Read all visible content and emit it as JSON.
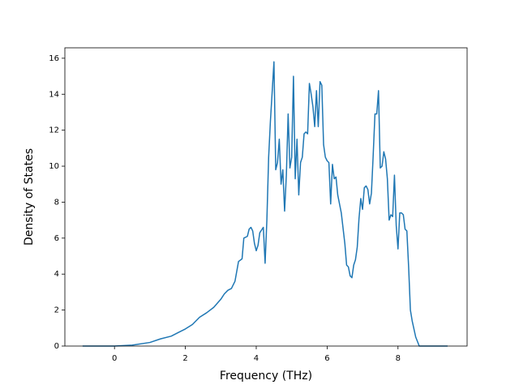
{
  "chart_data": {
    "type": "line",
    "xlabel": "Frequency (THz)",
    "ylabel": "Density of States",
    "color": "#1f77b4",
    "x": [
      -0.9,
      0,
      0.5,
      1.0,
      1.3,
      1.6,
      1.8,
      2.0,
      2.2,
      2.4,
      2.6,
      2.8,
      3.0,
      3.1,
      3.2,
      3.3,
      3.4,
      3.5,
      3.6,
      3.65,
      3.75,
      3.8,
      3.85,
      3.9,
      3.95,
      4.0,
      4.05,
      4.1,
      4.2,
      4.25,
      4.3,
      4.35,
      4.4,
      4.5,
      4.55,
      4.6,
      4.65,
      4.7,
      4.75,
      4.8,
      4.85,
      4.9,
      4.95,
      5.0,
      5.05,
      5.1,
      5.15,
      5.2,
      5.25,
      5.3,
      5.35,
      5.4,
      5.45,
      5.5,
      5.55,
      5.6,
      5.65,
      5.7,
      5.75,
      5.8,
      5.85,
      5.9,
      5.95,
      6.0,
      6.05,
      6.1,
      6.15,
      6.2,
      6.25,
      6.3,
      6.4,
      6.5,
      6.55,
      6.6,
      6.65,
      6.7,
      6.75,
      6.8,
      6.85,
      6.9,
      6.95,
      7.0,
      7.05,
      7.1,
      7.15,
      7.2,
      7.25,
      7.3,
      7.35,
      7.4,
      7.45,
      7.5,
      7.55,
      7.6,
      7.65,
      7.7,
      7.75,
      7.8,
      7.85,
      7.9,
      7.95,
      8.0,
      8.05,
      8.1,
      8.15,
      8.2,
      8.25,
      8.3,
      8.35,
      8.4,
      8.5,
      8.6,
      9.4
    ],
    "values": [
      0,
      0,
      0.05,
      0.2,
      0.4,
      0.55,
      0.75,
      0.95,
      1.2,
      1.6,
      1.85,
      2.15,
      2.6,
      2.9,
      3.1,
      3.2,
      3.6,
      4.7,
      4.85,
      6.0,
      6.1,
      6.5,
      6.6,
      6.4,
      5.7,
      5.3,
      5.6,
      6.3,
      6.6,
      4.6,
      7.0,
      10.5,
      12.5,
      15.8,
      9.8,
      10.2,
      11.5,
      9.0,
      9.8,
      7.5,
      9.5,
      12.9,
      9.9,
      10.5,
      15.0,
      9.3,
      11.5,
      8.4,
      10.2,
      10.5,
      11.8,
      11.9,
      11.8,
      14.6,
      14.0,
      13.3,
      12.2,
      14.2,
      12.2,
      14.7,
      14.5,
      11.2,
      10.5,
      10.3,
      10.2,
      7.9,
      10.1,
      9.3,
      9.4,
      8.4,
      7.4,
      5.7,
      4.5,
      4.4,
      3.9,
      3.8,
      4.5,
      4.8,
      5.5,
      7.1,
      8.2,
      7.6,
      8.8,
      8.9,
      8.7,
      7.9,
      8.5,
      10.6,
      12.9,
      12.9,
      14.2,
      9.9,
      10.0,
      10.8,
      10.4,
      9.3,
      7.0,
      7.3,
      7.2,
      9.5,
      6.7,
      5.4,
      7.4,
      7.4,
      7.3,
      6.5,
      6.4,
      4.4,
      2.0,
      1.4,
      0.5,
      0,
      0
    ],
    "xlim": [
      -1.4,
      9.95
    ],
    "ylim": [
      0,
      16.58
    ],
    "xticks": [
      0,
      2,
      4,
      6,
      8
    ],
    "yticks": [
      0,
      2,
      4,
      6,
      8,
      10,
      12,
      14,
      16
    ]
  }
}
